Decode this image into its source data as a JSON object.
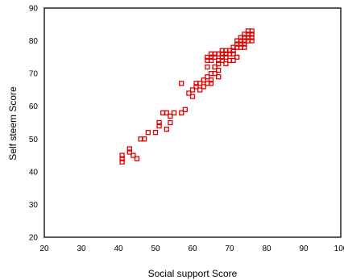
{
  "chart_data": {
    "type": "scatter",
    "title": "",
    "xlabel": "Social support Score",
    "ylabel": "Self steem Score",
    "xlim": [
      20,
      100
    ],
    "ylim": [
      20,
      90
    ],
    "xticks": [
      "20",
      "30",
      "40",
      "50",
      "60",
      "70",
      "80",
      "90",
      "100"
    ],
    "yticks": [
      "20",
      "30",
      "40",
      "50",
      "60",
      "70",
      "80",
      "90"
    ],
    "grid": false,
    "legend": "none",
    "marker_color": "#e00000",
    "axis_color": "#000000",
    "series": [
      {
        "points": [
          [
            41,
            43
          ],
          [
            41,
            44
          ],
          [
            41,
            45
          ],
          [
            43,
            46
          ],
          [
            43,
            47
          ],
          [
            44,
            45
          ],
          [
            45,
            44
          ],
          [
            46,
            50
          ],
          [
            47,
            50
          ],
          [
            48,
            52
          ],
          [
            50,
            52
          ],
          [
            51,
            54
          ],
          [
            51,
            55
          ],
          [
            52,
            58
          ],
          [
            53,
            53
          ],
          [
            53,
            58
          ],
          [
            54,
            55
          ],
          [
            54,
            57
          ],
          [
            55,
            58
          ],
          [
            57,
            58
          ],
          [
            58,
            59
          ],
          [
            57,
            67
          ],
          [
            59,
            64
          ],
          [
            60,
            63
          ],
          [
            60,
            65
          ],
          [
            61,
            66
          ],
          [
            61,
            67
          ],
          [
            62,
            65
          ],
          [
            62,
            67
          ],
          [
            63,
            68
          ],
          [
            63,
            66
          ],
          [
            64,
            67
          ],
          [
            64,
            69
          ],
          [
            64,
            72
          ],
          [
            64,
            74
          ],
          [
            64,
            75
          ],
          [
            65,
            67
          ],
          [
            65,
            68
          ],
          [
            65,
            70
          ],
          [
            65,
            74
          ],
          [
            65,
            75
          ],
          [
            65,
            76
          ],
          [
            66,
            70
          ],
          [
            66,
            72
          ],
          [
            66,
            75
          ],
          [
            66,
            76
          ],
          [
            67,
            69
          ],
          [
            67,
            71
          ],
          [
            67,
            73
          ],
          [
            67,
            74
          ],
          [
            67,
            76
          ],
          [
            68,
            74
          ],
          [
            68,
            75
          ],
          [
            68,
            76
          ],
          [
            68,
            77
          ],
          [
            69,
            73
          ],
          [
            69,
            75
          ],
          [
            69,
            76
          ],
          [
            69,
            77
          ],
          [
            70,
            74
          ],
          [
            70,
            76
          ],
          [
            70,
            77
          ],
          [
            71,
            74
          ],
          [
            71,
            76
          ],
          [
            71,
            77
          ],
          [
            71,
            78
          ],
          [
            72,
            75
          ],
          [
            72,
            78
          ],
          [
            72,
            79
          ],
          [
            72,
            80
          ],
          [
            73,
            78
          ],
          [
            73,
            79
          ],
          [
            73,
            80
          ],
          [
            73,
            81
          ],
          [
            74,
            79
          ],
          [
            74,
            80
          ],
          [
            74,
            81
          ],
          [
            74,
            82
          ],
          [
            74,
            78
          ],
          [
            75,
            80
          ],
          [
            75,
            81
          ],
          [
            75,
            82
          ],
          [
            75,
            83
          ],
          [
            76,
            80
          ],
          [
            76,
            81
          ],
          [
            76,
            82
          ],
          [
            76,
            83
          ]
        ]
      }
    ]
  }
}
